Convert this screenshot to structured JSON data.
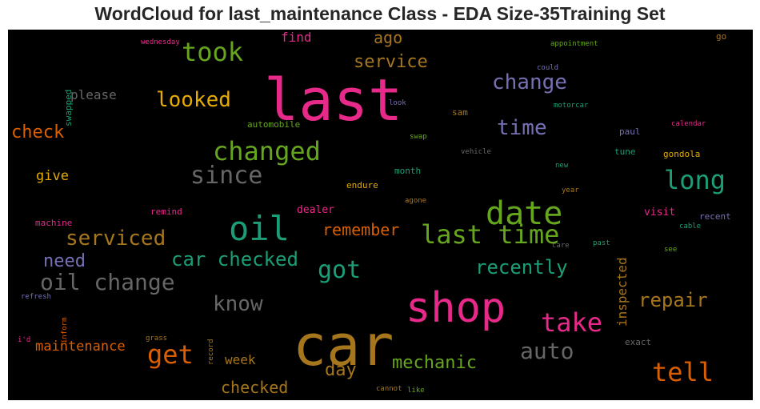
{
  "chart_data": {
    "type": "wordcloud",
    "title": "WordCloud for last_maintenance Class - EDA Size-35Training Set",
    "background": "#000000",
    "words": [
      {
        "text": "last",
        "color": "#e7298a",
        "orientation": "horizontal"
      },
      {
        "text": "car",
        "color": "#a6761d",
        "orientation": "horizontal"
      },
      {
        "text": "shop",
        "color": "#e7298a",
        "orientation": "horizontal"
      },
      {
        "text": "oil",
        "color": "#1b9e77",
        "orientation": "horizontal"
      },
      {
        "text": "date",
        "color": "#66a61e",
        "orientation": "horizontal"
      },
      {
        "text": "changed",
        "color": "#66a61e",
        "orientation": "horizontal"
      },
      {
        "text": "last time",
        "color": "#66a61e",
        "orientation": "horizontal"
      },
      {
        "text": "took",
        "color": "#66a61e",
        "orientation": "horizontal"
      },
      {
        "text": "long",
        "color": "#1b9e77",
        "orientation": "horizontal"
      },
      {
        "text": "get",
        "color": "#d95f02",
        "orientation": "horizontal"
      },
      {
        "text": "take",
        "color": "#e7298a",
        "orientation": "horizontal"
      },
      {
        "text": "tell",
        "color": "#d95f02",
        "orientation": "horizontal"
      },
      {
        "text": "since",
        "color": "#666666",
        "orientation": "horizontal"
      },
      {
        "text": "got",
        "color": "#1b9e77",
        "orientation": "horizontal"
      },
      {
        "text": "oil change",
        "color": "#666666",
        "orientation": "horizontal"
      },
      {
        "text": "auto",
        "color": "#666666",
        "orientation": "horizontal"
      },
      {
        "text": "serviced",
        "color": "#a6761d",
        "orientation": "horizontal"
      },
      {
        "text": "looked",
        "color": "#e6ab02",
        "orientation": "horizontal"
      },
      {
        "text": "time",
        "color": "#7570b3",
        "orientation": "horizontal"
      },
      {
        "text": "change",
        "color": "#7570b3",
        "orientation": "horizontal"
      },
      {
        "text": "car checked",
        "color": "#1b9e77",
        "orientation": "horizontal"
      },
      {
        "text": "know",
        "color": "#666666",
        "orientation": "horizontal"
      },
      {
        "text": "repair",
        "color": "#a6761d",
        "orientation": "horizontal"
      },
      {
        "text": "recently",
        "color": "#1b9e77",
        "orientation": "horizontal"
      },
      {
        "text": "mechanic",
        "color": "#66a61e",
        "orientation": "horizontal"
      },
      {
        "text": "day",
        "color": "#a6761d",
        "orientation": "horizontal"
      },
      {
        "text": "service",
        "color": "#a6761d",
        "orientation": "horizontal"
      },
      {
        "text": "need",
        "color": "#7570b3",
        "orientation": "horizontal"
      },
      {
        "text": "check",
        "color": "#d95f02",
        "orientation": "horizontal"
      },
      {
        "text": "remember",
        "color": "#d95f02",
        "orientation": "horizontal"
      },
      {
        "text": "ago",
        "color": "#a6761d",
        "orientation": "horizontal"
      },
      {
        "text": "checked",
        "color": "#a6761d",
        "orientation": "horizontal"
      },
      {
        "text": "maintenance",
        "color": "#d95f02",
        "orientation": "horizontal"
      },
      {
        "text": "give",
        "color": "#e6ab02",
        "orientation": "horizontal"
      },
      {
        "text": "inspected",
        "color": "#a6761d",
        "orientation": "vertical"
      },
      {
        "text": "please",
        "color": "#666666",
        "orientation": "horizontal"
      },
      {
        "text": "week",
        "color": "#a6761d",
        "orientation": "horizontal"
      },
      {
        "text": "find",
        "color": "#e7298a",
        "orientation": "horizontal"
      },
      {
        "text": "dealer",
        "color": "#e7298a",
        "orientation": "horizontal"
      },
      {
        "text": "visit",
        "color": "#e7298a",
        "orientation": "horizontal"
      },
      {
        "text": "endure",
        "color": "#e6ab02",
        "orientation": "horizontal"
      },
      {
        "text": "remind",
        "color": "#e7298a",
        "orientation": "horizontal"
      },
      {
        "text": "machine",
        "color": "#e7298a",
        "orientation": "horizontal"
      },
      {
        "text": "automobile",
        "color": "#66a61e",
        "orientation": "horizontal"
      },
      {
        "text": "month",
        "color": "#1b9e77",
        "orientation": "horizontal"
      },
      {
        "text": "sam",
        "color": "#a6761d",
        "orientation": "horizontal"
      },
      {
        "text": "paul",
        "color": "#7570b3",
        "orientation": "horizontal"
      },
      {
        "text": "tune",
        "color": "#1b9e77",
        "orientation": "horizontal"
      },
      {
        "text": "gondola",
        "color": "#e6ab02",
        "orientation": "horizontal"
      },
      {
        "text": "recent",
        "color": "#7570b3",
        "orientation": "horizontal"
      },
      {
        "text": "exact",
        "color": "#666666",
        "orientation": "horizontal"
      },
      {
        "text": "swapped",
        "color": "#1b9e77",
        "orientation": "vertical"
      },
      {
        "text": "wednesday",
        "color": "#e7298a",
        "orientation": "horizontal"
      },
      {
        "text": "appointment",
        "color": "#66a61e",
        "orientation": "horizontal"
      },
      {
        "text": "go",
        "color": "#a6761d",
        "orientation": "horizontal"
      },
      {
        "text": "could",
        "color": "#7570b3",
        "orientation": "horizontal"
      },
      {
        "text": "look",
        "color": "#7570b3",
        "orientation": "horizontal"
      },
      {
        "text": "motorcar",
        "color": "#1b9e77",
        "orientation": "horizontal"
      },
      {
        "text": "calendar",
        "color": "#e7298a",
        "orientation": "horizontal"
      },
      {
        "text": "swap",
        "color": "#66a61e",
        "orientation": "horizontal"
      },
      {
        "text": "vehicle",
        "color": "#666666",
        "orientation": "horizontal"
      },
      {
        "text": "new",
        "color": "#1b9e77",
        "orientation": "horizontal"
      },
      {
        "text": "year",
        "color": "#a6761d",
        "orientation": "horizontal"
      },
      {
        "text": "agone",
        "color": "#a6761d",
        "orientation": "horizontal"
      },
      {
        "text": "past",
        "color": "#1b9e77",
        "orientation": "horizontal"
      },
      {
        "text": "care",
        "color": "#666666",
        "orientation": "horizontal"
      },
      {
        "text": "cable",
        "color": "#1b9e77",
        "orientation": "horizontal"
      },
      {
        "text": "see",
        "color": "#66a61e",
        "orientation": "horizontal"
      },
      {
        "text": "refresh",
        "color": "#7570b3",
        "orientation": "horizontal"
      },
      {
        "text": "inform",
        "color": "#d95f02",
        "orientation": "vertical"
      },
      {
        "text": "i'd",
        "color": "#e7298a",
        "orientation": "horizontal"
      },
      {
        "text": "grass",
        "color": "#a6761d",
        "orientation": "horizontal"
      },
      {
        "text": "record",
        "color": "#a6761d",
        "orientation": "vertical"
      },
      {
        "text": "cannot",
        "color": "#a6761d",
        "orientation": "horizontal"
      },
      {
        "text": "like",
        "color": "#66a61e",
        "orientation": "horizontal"
      }
    ]
  }
}
